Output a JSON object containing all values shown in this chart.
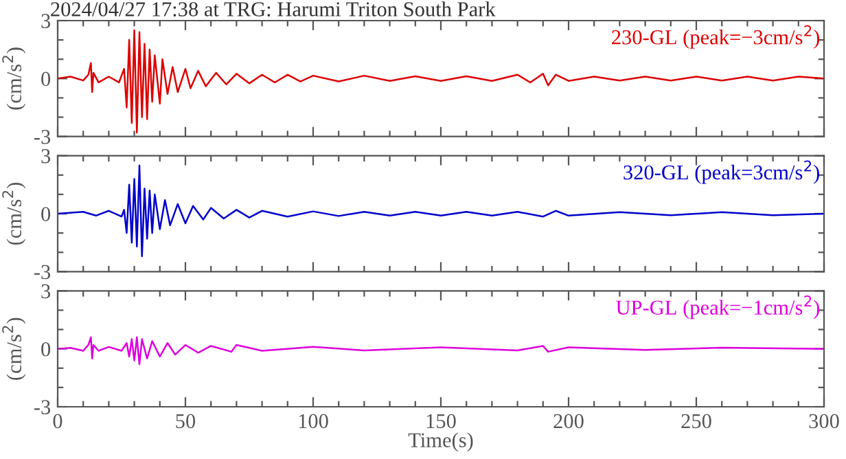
{
  "chart_data": [
    {
      "type": "line",
      "title": "2024/04/27 17:38 at TRG: Harumi Triton South Park",
      "ylabel": "(cm/s$^{2}$)",
      "annotations": [
        "230-GL (peak=−3cm/s$^{2}$)"
      ],
      "tick_labels": "y",
      "xlim": [
        0,
        300
      ],
      "ylim": [
        -3,
        3
      ],
      "xticks": [
        0,
        {
          "value": 10,
          "label": null
        },
        {
          "value": 20,
          "label": null
        },
        {
          "value": 30,
          "label": null
        },
        {
          "value": 40,
          "label": null
        },
        50,
        {
          "value": 60,
          "label": null
        },
        {
          "value": 70,
          "label": null
        },
        {
          "value": 80,
          "label": null
        },
        {
          "value": 90,
          "label": null
        },
        100,
        {
          "value": 110,
          "label": null
        },
        {
          "value": 120,
          "label": null
        },
        {
          "value": 130,
          "label": null
        },
        {
          "value": 140,
          "label": null
        },
        150,
        {
          "value": 160,
          "label": null
        },
        {
          "value": 170,
          "label": null
        },
        {
          "value": 180,
          "label": null
        },
        {
          "value": 190,
          "label": null
        },
        200,
        {
          "value": 210,
          "label": null
        },
        {
          "value": 220,
          "label": null
        },
        {
          "value": 230,
          "label": null
        },
        {
          "value": 240,
          "label": null
        },
        250,
        {
          "value": 260,
          "label": null
        },
        {
          "value": 270,
          "label": null
        },
        {
          "value": 280,
          "label": null
        },
        {
          "value": 290,
          "label": null
        },
        300
      ],
      "yticks": [
        -3,
        {
          "value": -2,
          "label": null
        },
        {
          "value": -1,
          "label": null
        },
        0,
        {
          "value": 1,
          "label": null
        },
        {
          "value": 2,
          "label": null
        },
        3
      ],
      "series": [
        {
          "color": "#dd0000",
          "x": [
            0,
            5,
            10,
            12,
            13,
            13.5,
            14,
            16,
            20,
            24,
            26,
            27,
            28,
            29,
            30,
            31,
            32,
            33,
            34,
            35,
            36,
            37,
            38,
            40,
            41,
            43,
            45,
            47,
            50,
            52,
            55,
            58,
            62,
            66,
            70,
            75,
            80,
            85,
            90,
            95,
            100,
            110,
            120,
            130,
            140,
            150,
            160,
            170,
            180,
            185,
            190,
            192,
            195,
            200,
            210,
            220,
            230,
            240,
            250,
            260,
            270,
            280,
            290,
            300
          ],
          "values": [
            0,
            0.1,
            -0.1,
            0.2,
            0.8,
            -0.7,
            0.3,
            -0.2,
            0.1,
            -0.2,
            0.5,
            -1.5,
            2.0,
            -2.3,
            2.5,
            -2.8,
            2.4,
            -2.0,
            1.8,
            -2.1,
            1.5,
            -1.2,
            1.2,
            -1.3,
            1.0,
            -0.8,
            0.6,
            -0.7,
            0.5,
            -0.5,
            0.4,
            -0.4,
            0.3,
            -0.3,
            0.25,
            -0.25,
            0.2,
            -0.2,
            0.2,
            -0.15,
            0.15,
            -0.15,
            0.15,
            -0.12,
            0.12,
            -0.12,
            0.12,
            -0.12,
            0.2,
            -0.2,
            0.25,
            -0.35,
            0.2,
            -0.12,
            0.1,
            -0.1,
            0.1,
            -0.1,
            0.1,
            -0.1,
            0.1,
            -0.1,
            0.1,
            0
          ]
        }
      ]
    },
    {
      "type": "line",
      "ylabel": "(cm/s$^{2}$)",
      "annotations": [
        "320-GL (peak=3cm/s$^{2}$)"
      ],
      "tick_labels": "y",
      "xlim": [
        0,
        300
      ],
      "ylim": [
        -3,
        3
      ],
      "xticks": [
        0,
        {
          "value": 10,
          "label": null
        },
        {
          "value": 20,
          "label": null
        },
        {
          "value": 30,
          "label": null
        },
        {
          "value": 40,
          "label": null
        },
        50,
        {
          "value": 60,
          "label": null
        },
        {
          "value": 70,
          "label": null
        },
        {
          "value": 80,
          "label": null
        },
        {
          "value": 90,
          "label": null
        },
        100,
        {
          "value": 110,
          "label": null
        },
        {
          "value": 120,
          "label": null
        },
        {
          "value": 130,
          "label": null
        },
        {
          "value": 140,
          "label": null
        },
        150,
        {
          "value": 160,
          "label": null
        },
        {
          "value": 170,
          "label": null
        },
        {
          "value": 180,
          "label": null
        },
        {
          "value": 190,
          "label": null
        },
        200,
        {
          "value": 210,
          "label": null
        },
        {
          "value": 220,
          "label": null
        },
        {
          "value": 230,
          "label": null
        },
        {
          "value": 240,
          "label": null
        },
        250,
        {
          "value": 260,
          "label": null
        },
        {
          "value": 270,
          "label": null
        },
        {
          "value": 280,
          "label": null
        },
        {
          "value": 290,
          "label": null
        },
        300
      ],
      "yticks": [
        -3,
        {
          "value": -2,
          "label": null
        },
        {
          "value": -1,
          "label": null
        },
        0,
        {
          "value": 1,
          "label": null
        },
        {
          "value": 2,
          "label": null
        },
        3
      ],
      "series": [
        {
          "color": "#0000cc",
          "x": [
            0,
            10,
            15,
            20,
            25,
            26,
            27,
            28,
            29,
            30,
            31,
            32,
            33,
            34,
            35,
            36,
            37,
            38,
            40,
            42,
            44,
            47,
            50,
            53,
            57,
            60,
            65,
            70,
            75,
            80,
            90,
            100,
            110,
            120,
            130,
            140,
            150,
            160,
            170,
            180,
            190,
            195,
            200,
            220,
            240,
            260,
            280,
            300
          ],
          "values": [
            0,
            0.1,
            -0.1,
            0.15,
            -0.15,
            0.2,
            -1.0,
            1.5,
            -1.5,
            1.8,
            -1.7,
            2.5,
            -2.2,
            1.3,
            -1.3,
            1.2,
            -1.0,
            1.0,
            -0.8,
            0.7,
            -0.6,
            0.5,
            -0.5,
            0.4,
            -0.3,
            0.3,
            -0.25,
            0.2,
            -0.2,
            0.15,
            -0.15,
            0.12,
            -0.12,
            0.1,
            -0.1,
            0.1,
            -0.1,
            0.1,
            -0.1,
            0.1,
            -0.15,
            0.15,
            -0.1,
            0.08,
            -0.08,
            0.08,
            -0.08,
            0
          ]
        }
      ]
    },
    {
      "type": "line",
      "xlabel": "Time(s)",
      "ylabel": "(cm/s$^{2}$)",
      "annotations": [
        "UP-GL (peak=−1cm/s$^{2}$)"
      ],
      "xlim": [
        0,
        300
      ],
      "ylim": [
        -3,
        3
      ],
      "xticks": [
        0,
        {
          "value": 10,
          "label": null
        },
        {
          "value": 20,
          "label": null
        },
        {
          "value": 30,
          "label": null
        },
        {
          "value": 40,
          "label": null
        },
        50,
        {
          "value": 60,
          "label": null
        },
        {
          "value": 70,
          "label": null
        },
        {
          "value": 80,
          "label": null
        },
        {
          "value": 90,
          "label": null
        },
        100,
        {
          "value": 110,
          "label": null
        },
        {
          "value": 120,
          "label": null
        },
        {
          "value": 130,
          "label": null
        },
        {
          "value": 140,
          "label": null
        },
        150,
        {
          "value": 160,
          "label": null
        },
        {
          "value": 170,
          "label": null
        },
        {
          "value": 180,
          "label": null
        },
        {
          "value": 190,
          "label": null
        },
        200,
        {
          "value": 210,
          "label": null
        },
        {
          "value": 220,
          "label": null
        },
        {
          "value": 230,
          "label": null
        },
        {
          "value": 240,
          "label": null
        },
        250,
        {
          "value": 260,
          "label": null
        },
        {
          "value": 270,
          "label": null
        },
        {
          "value": 280,
          "label": null
        },
        {
          "value": 290,
          "label": null
        },
        300
      ],
      "yticks": [
        -3,
        {
          "value": -2,
          "label": null
        },
        {
          "value": -1,
          "label": null
        },
        0,
        {
          "value": 1,
          "label": null
        },
        {
          "value": 2,
          "label": null
        },
        3
      ],
      "series": [
        {
          "color": "#dd00dd",
          "x": [
            0,
            5,
            10,
            12,
            13,
            13.5,
            14,
            16,
            20,
            25,
            27,
            28,
            29,
            30,
            31,
            32,
            33,
            35,
            37,
            40,
            43,
            46,
            50,
            55,
            60,
            68,
            70,
            80,
            100,
            120,
            150,
            180,
            190,
            192,
            200,
            230,
            260,
            300
          ],
          "values": [
            0,
            0.05,
            -0.1,
            0.2,
            0.6,
            -0.5,
            0.2,
            -0.1,
            0.1,
            -0.1,
            0.3,
            -0.4,
            0.5,
            -0.6,
            0.6,
            -0.8,
            0.5,
            -0.5,
            0.4,
            -0.4,
            0.3,
            -0.3,
            0.2,
            -0.2,
            0.15,
            -0.15,
            0.2,
            -0.1,
            0.1,
            -0.08,
            0.08,
            -0.08,
            0.15,
            -0.15,
            0.08,
            -0.06,
            0.06,
            0
          ]
        }
      ]
    }
  ]
}
